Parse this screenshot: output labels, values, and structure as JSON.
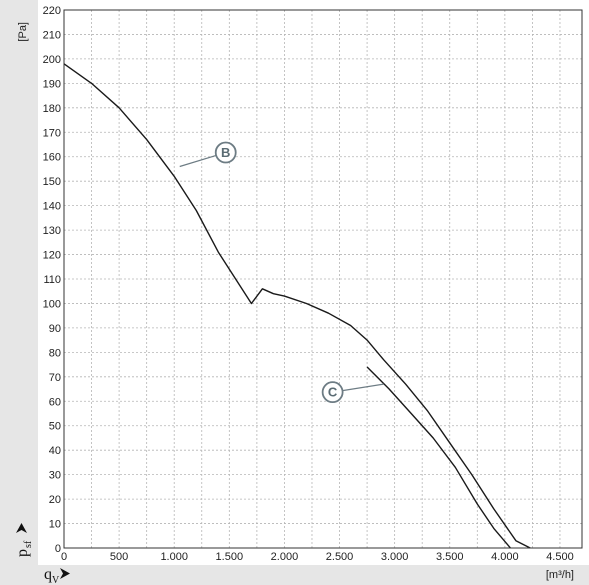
{
  "chart_data": {
    "type": "line",
    "ylabel": "[Pa]",
    "xlabel": "[m³/h]",
    "y_symbol": "p",
    "y_symbol_sub": "sf",
    "x_symbol": "q",
    "x_symbol_sub": "V",
    "xlim": [
      0,
      4700
    ],
    "ylim": [
      0,
      220
    ],
    "x_ticks": [
      0,
      500,
      1000,
      1500,
      2000,
      2500,
      3000,
      3500,
      4000,
      4500
    ],
    "x_tick_labels": [
      "0",
      "500",
      "1.000",
      "1.500",
      "2.000",
      "2.500",
      "3.000",
      "3.500",
      "4.000",
      "4.500"
    ],
    "y_ticks": [
      0,
      10,
      20,
      30,
      40,
      50,
      60,
      70,
      80,
      90,
      100,
      110,
      120,
      130,
      140,
      150,
      160,
      170,
      180,
      190,
      200,
      210,
      220
    ],
    "grid": true,
    "series": [
      {
        "name": "B",
        "x": [
          0,
          250,
          500,
          750,
          1000,
          1200,
          1400,
          1600,
          1700,
          1800,
          1900,
          2000,
          2200,
          2400,
          2600,
          2750,
          2900,
          3100,
          3300,
          3500,
          3700,
          3900,
          4100,
          4230
        ],
        "y": [
          198,
          190,
          180,
          167,
          152,
          138,
          121,
          107,
          100,
          106,
          104,
          103,
          100,
          96,
          91,
          85,
          77,
          67,
          56,
          43,
          30,
          16,
          3,
          0
        ]
      },
      {
        "name": "C",
        "x": [
          2750,
          2950,
          3150,
          3350,
          3550,
          3750,
          3900,
          4050
        ],
        "y": [
          74,
          65,
          55,
          45,
          33,
          18,
          8,
          0
        ]
      }
    ],
    "annotations": [
      {
        "text": "B",
        "target_series": "B",
        "target_x": 1050,
        "target_y": 156
      },
      {
        "text": "C",
        "target_series": "C",
        "target_x": 2900,
        "target_y": 67
      }
    ]
  }
}
